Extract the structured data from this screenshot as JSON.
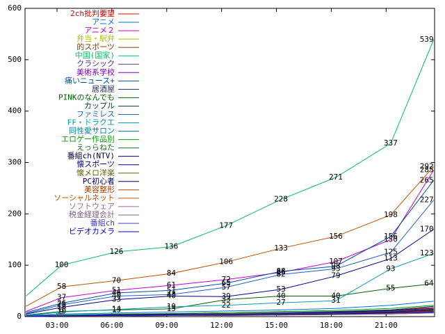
{
  "chart_data": {
    "type": "line",
    "x": [
      1.3,
      3.25,
      6.25,
      9.25,
      12.25,
      15.25,
      18.25,
      21.25,
      23.6
    ],
    "xlim": [
      1.25,
      23.65
    ],
    "xticks": [
      {
        "value": 3,
        "label": "03:00"
      },
      {
        "value": 6,
        "label": "06:00"
      },
      {
        "value": 9,
        "label": "09:00"
      },
      {
        "value": 12,
        "label": "12:00"
      },
      {
        "value": 15,
        "label": "15:00"
      },
      {
        "value": 18,
        "label": "18:00"
      },
      {
        "value": 21,
        "label": "21:00"
      }
    ],
    "ylim": [
      0,
      600
    ],
    "yticks": [
      0,
      100,
      200,
      300,
      400,
      500,
      600
    ],
    "series": [
      {
        "name": "2ch批判要望",
        "color": "#e00000",
        "values": [
          1,
          3,
          4,
          5,
          6,
          7,
          9,
          12,
          18
        ]
      },
      {
        "name": "アニメ",
        "color": "#0070e0",
        "values": [
          2,
          5,
          7,
          9,
          11,
          13,
          16,
          22,
          30
        ]
      },
      {
        "name": "アニメ２",
        "color": "#c000d0",
        "labels": true,
        "values": [
          10,
          37,
          51,
          61,
          72,
          86,
          107,
          150,
          285
        ]
      },
      {
        "name": "弁当・駅弁",
        "color": "#b0c000",
        "values": [
          0,
          1,
          2,
          3,
          3,
          4,
          5,
          6,
          8
        ]
      },
      {
        "name": "的スポーツ",
        "color": "#804000",
        "values": [
          1,
          2,
          3,
          4,
          5,
          6,
          8,
          10,
          14
        ]
      },
      {
        "name": "中国(国家)",
        "color": "#00c060",
        "labels": true,
        "values": [
          40,
          100,
          126,
          136,
          177,
          228,
          271,
          337,
          539
        ]
      },
      {
        "name": "クラシック",
        "color": "#404090",
        "values": [
          0,
          2,
          3,
          4,
          5,
          6,
          7,
          9,
          12
        ]
      },
      {
        "name": "美術系学校",
        "color": "#8000c0",
        "values": [
          1,
          2,
          3,
          3,
          4,
          5,
          6,
          8,
          11
        ]
      },
      {
        "name": "痛いニュース+",
        "color": "#0050a0",
        "labels": true,
        "values": [
          8,
          26,
          46,
          51,
          65,
          88,
          98,
          156,
          265
        ]
      },
      {
        "name": "居酒屋",
        "color": "#203060",
        "values": [
          0,
          1,
          2,
          2,
          3,
          4,
          5,
          6,
          9
        ]
      },
      {
        "name": "PINKのなんでも",
        "color": "#006000",
        "labels": true,
        "values": [
          3,
          10,
          13,
          15,
          33,
          40,
          40,
          55,
          64
        ]
      },
      {
        "name": "カップル",
        "color": "#004050",
        "values": [
          1,
          3,
          4,
          5,
          6,
          8,
          10,
          13,
          20
        ]
      },
      {
        "name": "ファミレス",
        "color": "#2060c0",
        "labels": true,
        "values": [
          6,
          23,
          40,
          43,
          57,
          82,
          93,
          125,
          227
        ]
      },
      {
        "name": "FF・ドラクエ",
        "color": "#00a0b0",
        "labels": true,
        "values": [
          2,
          9,
          14,
          19,
          22,
          27,
          31,
          93,
          123
        ]
      },
      {
        "name": "同性愛サロン",
        "color": "#0080a0",
        "values": [
          0,
          1,
          2,
          3,
          4,
          5,
          6,
          7,
          10
        ]
      },
      {
        "name": "エロゲー作品別",
        "color": "#00a000",
        "values": [
          1,
          3,
          5,
          6,
          8,
          10,
          12,
          16,
          22
        ]
      },
      {
        "name": "えっらねた",
        "color": "#207020",
        "values": [
          0,
          2,
          3,
          3,
          4,
          5,
          6,
          8,
          10
        ]
      },
      {
        "name": "番組ch(NTV)",
        "color": "#000040",
        "values": [
          1,
          2,
          4,
          5,
          6,
          7,
          9,
          12,
          16
        ]
      },
      {
        "name": "懐スポーツ",
        "color": "#000090",
        "labels": true,
        "values": [
          5,
          18,
          33,
          40,
          39,
          53,
          79,
          113,
          170
        ]
      },
      {
        "name": "懐メロ洋楽",
        "color": "#606000",
        "values": [
          0,
          1,
          1,
          2,
          2,
          3,
          4,
          5,
          7
        ]
      },
      {
        "name": "PC初心者",
        "color": "#000060",
        "values": [
          1,
          2,
          3,
          4,
          5,
          6,
          7,
          9,
          13
        ]
      },
      {
        "name": "美容整形",
        "color": "#a04000",
        "values": [
          0,
          1,
          2,
          3,
          4,
          5,
          6,
          8,
          11
        ]
      },
      {
        "name": "ソーシャルネット",
        "color": "#c05000",
        "labels": true,
        "values": [
          20,
          58,
          70,
          84,
          106,
          133,
          156,
          198,
          292
        ]
      },
      {
        "name": "ソフトウェア",
        "color": "#a060a0",
        "values": [
          0,
          1,
          2,
          2,
          3,
          4,
          5,
          6,
          8
        ]
      },
      {
        "name": "税金経理会計",
        "color": "#806080",
        "values": [
          0,
          1,
          1,
          2,
          3,
          3,
          4,
          5,
          7
        ]
      },
      {
        "name": "番組ch",
        "color": "#4040c0",
        "values": [
          1,
          2,
          3,
          4,
          6,
          7,
          8,
          11,
          15
        ]
      },
      {
        "name": "ビデオカメラ",
        "color": "#0000c0",
        "values": [
          0,
          1,
          2,
          3,
          3,
          4,
          5,
          7,
          9
        ]
      }
    ]
  }
}
